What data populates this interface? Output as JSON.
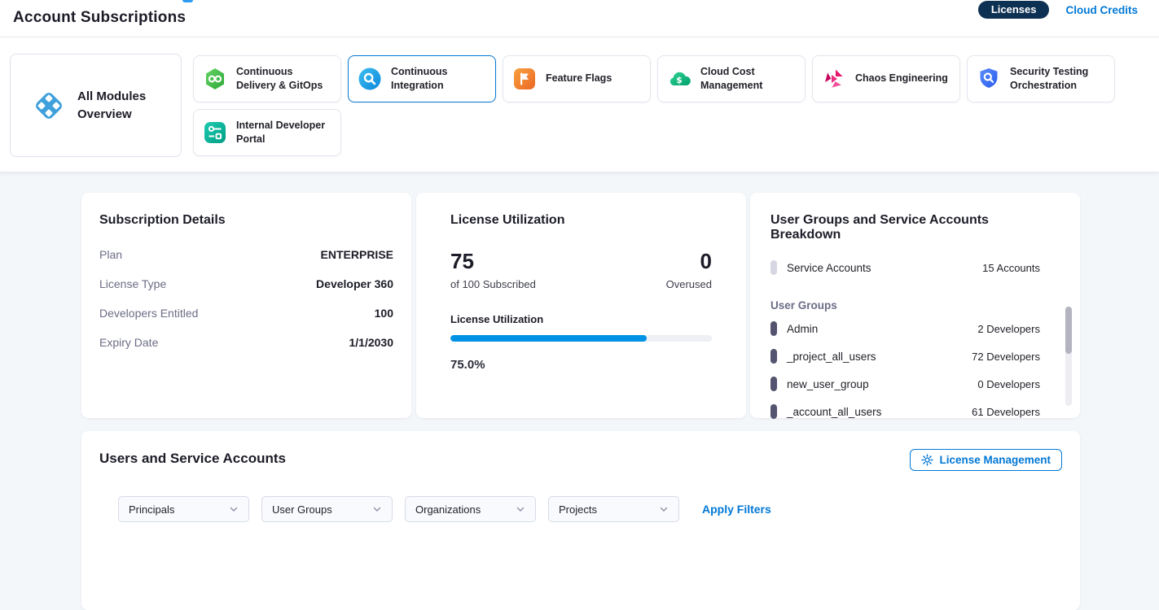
{
  "header": {
    "title": "Account Subscriptions",
    "licenses_label": "Licenses",
    "cloud_credits_label": "Cloud Credits"
  },
  "modules": {
    "overview_label": "All Modules Overview",
    "items": [
      {
        "label": "Continuous Delivery & GitOps",
        "selected": false
      },
      {
        "label": "Continuous Integration",
        "selected": true
      },
      {
        "label": "Feature Flags",
        "selected": false
      },
      {
        "label": "Cloud Cost Management",
        "selected": false
      },
      {
        "label": "Chaos Engineering",
        "selected": false
      },
      {
        "label": "Security Testing Orchestration",
        "selected": false
      },
      {
        "label": "Internal Developer Portal",
        "selected": false
      }
    ]
  },
  "cards": {
    "subscription": {
      "title": "Subscription Details",
      "rows": [
        {
          "label": "Plan",
          "value": "ENTERPRISE"
        },
        {
          "label": "License Type",
          "value": "Developer 360"
        },
        {
          "label": "Developers Entitled",
          "value": "100"
        },
        {
          "label": "Expiry Date",
          "value": "1/1/2030"
        }
      ]
    },
    "utilization": {
      "title": "License Utilization",
      "used": "75",
      "used_caption": "of 100 Subscribed",
      "overused": "0",
      "overused_caption": "Overused",
      "bar_label": "License Utilization",
      "percent": 75.0,
      "percent_label": "75.0%"
    },
    "breakdown": {
      "title": "User Groups and Service Accounts Breakdown",
      "service_accounts": {
        "label": "Service Accounts",
        "value": "15 Accounts"
      },
      "user_groups_heading": "User Groups",
      "groups": [
        {
          "name": "Admin",
          "value": "2 Developers"
        },
        {
          "name": "_project_all_users",
          "value": "72 Developers"
        },
        {
          "name": "new_user_group",
          "value": "0 Developers"
        },
        {
          "name": "_account_all_users",
          "value": "61 Developers"
        }
      ]
    }
  },
  "users_section": {
    "title": "Users and Service Accounts",
    "license_management_label": "License Management",
    "filters": [
      "Principals",
      "User Groups",
      "Organizations",
      "Projects"
    ],
    "apply_filters_label": "Apply Filters"
  },
  "colors": {
    "accent_blue": "#0278d5",
    "progress_fill": "#0092e4",
    "navy_pill": "#0d3153",
    "label_gray": "#6b6d85",
    "page_background": "#f4f7fa"
  }
}
